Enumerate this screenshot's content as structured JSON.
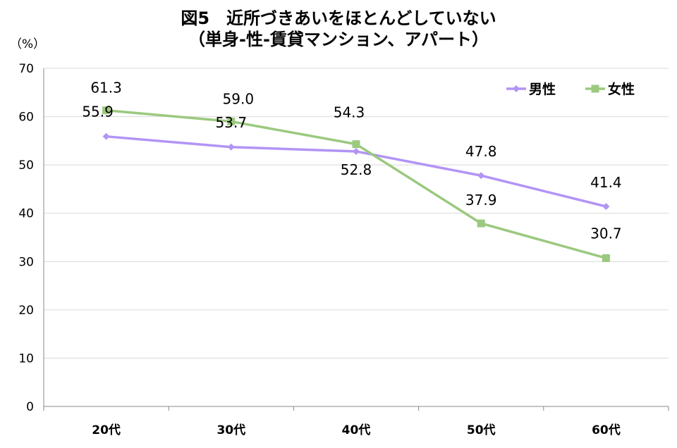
{
  "chart_data": {
    "type": "line",
    "title": "図5　近所づきあいをほとんどしていない",
    "subtitle": "（単身-性-賃貸マンション、アパート）",
    "ylabel": "（%）",
    "xlabel": "",
    "categories": [
      "20代",
      "30代",
      "40代",
      "50代",
      "60代"
    ],
    "ylim": [
      0,
      70
    ],
    "yticks": [
      "0",
      "10",
      "20",
      "30",
      "40",
      "50",
      "60",
      "70"
    ],
    "grid": true,
    "legend_position": "top-right",
    "series": [
      {
        "name": "男性",
        "values": [
          55.9,
          53.7,
          52.8,
          47.8,
          41.4
        ],
        "labels": [
          "55.9",
          "53.7",
          "52.8",
          "47.8",
          "41.4"
        ],
        "color": "#b294f5",
        "marker": "diamond"
      },
      {
        "name": "女性",
        "values": [
          61.3,
          59.0,
          54.3,
          37.9,
          30.7
        ],
        "labels": [
          "61.3",
          "59.0",
          "54.3",
          "37.9",
          "30.7"
        ],
        "color": "#9bc97f",
        "marker": "square"
      }
    ]
  }
}
